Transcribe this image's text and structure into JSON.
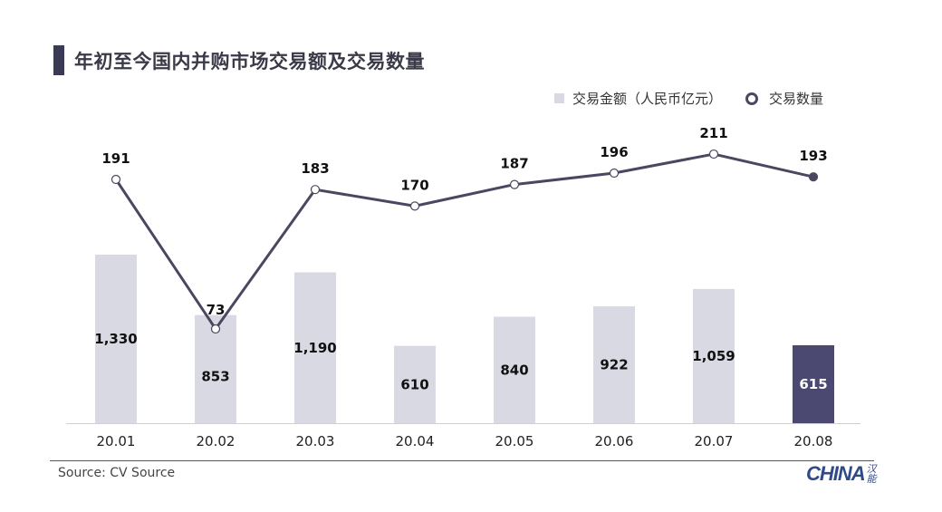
{
  "header": {
    "title": "年初至今国内并购市场交易额及交易数量"
  },
  "legend": {
    "bar_label": "交易金额（人民币亿元）",
    "line_label": "交易数量"
  },
  "footer": {
    "source": "Source: CV Source",
    "logo_text": "CHINA",
    "logo_cn": "汉能"
  },
  "colors": {
    "bar": "#d8d9e2",
    "bar_highlight": "#4b4872",
    "line": "#4a4860",
    "axis": "#d0d0d0"
  },
  "chart_data": {
    "type": "bar+line",
    "title": "年初至今国内并购市场交易额及交易数量",
    "categories": [
      "20.01",
      "20.02",
      "20.03",
      "20.04",
      "20.05",
      "20.06",
      "20.07",
      "20.08"
    ],
    "series": [
      {
        "name": "交易金额（人民币亿元）",
        "type": "bar",
        "values": [
          1330,
          853,
          1190,
          610,
          840,
          922,
          1059,
          615
        ],
        "labels": [
          "1,330",
          "853",
          "1,190",
          "610",
          "840",
          "922",
          "1,059",
          "615"
        ]
      },
      {
        "name": "交易数量",
        "type": "line",
        "values": [
          191,
          73,
          183,
          170,
          187,
          196,
          211,
          193
        ],
        "labels": [
          "191",
          "73",
          "183",
          "170",
          "187",
          "196",
          "211",
          "193"
        ]
      }
    ],
    "xlabel": "",
    "ylabel": "",
    "grid": false,
    "legend_position": "top-right",
    "highlight_index": 7,
    "source": "Source: CV Source"
  }
}
